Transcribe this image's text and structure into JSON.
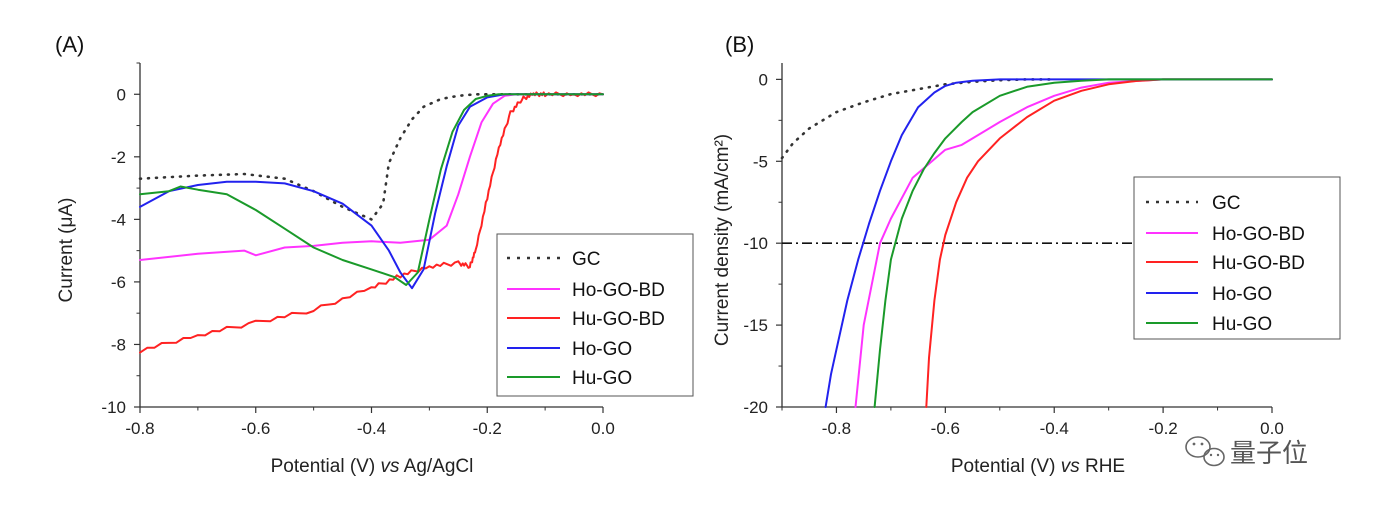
{
  "chart_data": [
    {
      "type": "line",
      "panel_label": "(A)",
      "xlabel": "Potential (V)",
      "xlabel_italic": "vs",
      "xlabel_ref": "Ag/AgCl",
      "ylabel": "Current (μA)",
      "xlim": [
        -0.8,
        0.0
      ],
      "ylim": [
        -10,
        1
      ],
      "xticks": [
        -0.8,
        -0.6,
        -0.4,
        -0.2,
        0.0
      ],
      "xtick_labels": [
        "-0.8",
        "-0.6",
        "-0.4",
        "-0.2",
        "0.0"
      ],
      "yticks": [
        0,
        -2,
        -4,
        -6,
        -8,
        -10
      ],
      "ytick_labels": [
        "0",
        "-2",
        "-4",
        "-6",
        "-8",
        "-10"
      ],
      "legend_position": "bottom-right",
      "series": [
        {
          "name": "GC",
          "color": "#333333",
          "style": "dotted",
          "x": [
            -0.8,
            -0.7,
            -0.62,
            -0.55,
            -0.5,
            -0.45,
            -0.4,
            -0.38,
            -0.37,
            -0.35,
            -0.33,
            -0.31,
            -0.28,
            -0.25,
            -0.22,
            -0.2,
            -0.15,
            -0.1,
            -0.05,
            0.0
          ],
          "y": [
            -2.7,
            -2.6,
            -2.55,
            -2.7,
            -3.1,
            -3.6,
            -4.0,
            -3.5,
            -2.2,
            -1.4,
            -0.8,
            -0.4,
            -0.15,
            -0.05,
            0,
            0,
            0,
            0,
            0,
            0
          ]
        },
        {
          "name": "Ho-GO-BD",
          "color": "#ff33ff",
          "style": "solid",
          "x": [
            -0.8,
            -0.7,
            -0.62,
            -0.6,
            -0.55,
            -0.5,
            -0.45,
            -0.4,
            -0.35,
            -0.3,
            -0.27,
            -0.25,
            -0.23,
            -0.21,
            -0.19,
            -0.17,
            -0.15,
            -0.1,
            0.0
          ],
          "y": [
            -5.3,
            -5.1,
            -5.0,
            -5.15,
            -4.9,
            -4.85,
            -4.75,
            -4.7,
            -4.75,
            -4.65,
            -4.2,
            -3.2,
            -2.0,
            -0.9,
            -0.3,
            -0.05,
            0,
            0,
            0
          ]
        },
        {
          "name": "Hu-GO-BD",
          "color": "#ff2222",
          "style": "solid",
          "x": [
            -0.8,
            -0.7,
            -0.6,
            -0.5,
            -0.4,
            -0.35,
            -0.3,
            -0.25,
            -0.23,
            -0.22,
            -0.2,
            -0.18,
            -0.16,
            -0.14,
            -0.12,
            -0.1,
            -0.05,
            0.0
          ],
          "y": [
            -8.2,
            -7.7,
            -7.3,
            -6.9,
            -6.2,
            -5.8,
            -5.5,
            -5.4,
            -5.5,
            -5.0,
            -3.3,
            -1.7,
            -0.6,
            -0.15,
            0,
            0,
            0,
            0
          ],
          "jitter": 0.06
        },
        {
          "name": "Ho-GO",
          "color": "#2222ee",
          "style": "solid",
          "x": [
            -0.8,
            -0.75,
            -0.7,
            -0.65,
            -0.6,
            -0.55,
            -0.5,
            -0.45,
            -0.4,
            -0.37,
            -0.35,
            -0.33,
            -0.31,
            -0.29,
            -0.27,
            -0.25,
            -0.23,
            -0.2,
            -0.17,
            -0.15,
            -0.1,
            0.0
          ],
          "y": [
            -3.6,
            -3.1,
            -2.9,
            -2.8,
            -2.8,
            -2.85,
            -3.1,
            -3.5,
            -4.2,
            -5.0,
            -5.7,
            -6.2,
            -5.6,
            -3.8,
            -2.3,
            -1.0,
            -0.4,
            -0.1,
            0,
            0,
            0,
            0
          ]
        },
        {
          "name": "Hu-GO",
          "color": "#1a9a2a",
          "style": "solid",
          "x": [
            -0.8,
            -0.75,
            -0.73,
            -0.7,
            -0.65,
            -0.6,
            -0.55,
            -0.5,
            -0.45,
            -0.4,
            -0.36,
            -0.34,
            -0.32,
            -0.3,
            -0.28,
            -0.26,
            -0.24,
            -0.22,
            -0.2,
            -0.18,
            -0.15,
            -0.1,
            0.0
          ],
          "y": [
            -3.2,
            -3.1,
            -2.95,
            -3.05,
            -3.2,
            -3.7,
            -4.3,
            -4.9,
            -5.3,
            -5.6,
            -5.85,
            -6.1,
            -5.7,
            -4.0,
            -2.4,
            -1.2,
            -0.5,
            -0.15,
            -0.05,
            0,
            0,
            0,
            0
          ]
        }
      ]
    },
    {
      "type": "line",
      "panel_label": "(B)",
      "xlabel": "Potential (V)",
      "xlabel_italic": "vs",
      "xlabel_ref": "RHE",
      "ylabel": "Current density (mA/cm²)",
      "xlim": [
        -0.9,
        0.0
      ],
      "ylim": [
        -20,
        1
      ],
      "xticks": [
        -0.8,
        -0.6,
        -0.4,
        -0.2,
        0.0
      ],
      "xtick_labels": [
        "-0.8",
        "-0.6",
        "-0.4",
        "-0.2",
        "0.0"
      ],
      "yticks": [
        0,
        -5,
        -10,
        -15,
        -20
      ],
      "ytick_labels": [
        "0",
        "-5",
        "-10",
        "-15",
        "-20"
      ],
      "reference_line": {
        "y": -10,
        "label": "",
        "style": "dash-dot"
      },
      "legend_position": "right",
      "series": [
        {
          "name": "GC",
          "color": "#333333",
          "style": "dotted",
          "x": [
            -0.9,
            -0.88,
            -0.85,
            -0.8,
            -0.75,
            -0.7,
            -0.65,
            -0.6,
            -0.55,
            -0.5,
            -0.45,
            -0.4
          ],
          "y": [
            -4.8,
            -3.9,
            -3.0,
            -2.0,
            -1.4,
            -0.9,
            -0.6,
            -0.3,
            -0.15,
            -0.05,
            0,
            0
          ]
        },
        {
          "name": "Ho-GO-BD",
          "color": "#ff33ff",
          "style": "solid",
          "x": [
            -0.765,
            -0.75,
            -0.72,
            -0.7,
            -0.66,
            -0.6,
            -0.57,
            -0.55,
            -0.5,
            -0.45,
            -0.4,
            -0.35,
            -0.3,
            -0.25,
            -0.2,
            -0.15,
            0.0
          ],
          "y": [
            -20,
            -15.0,
            -10.0,
            -8.5,
            -6.0,
            -4.3,
            -4.0,
            -3.6,
            -2.6,
            -1.7,
            -1.0,
            -0.5,
            -0.2,
            -0.1,
            0,
            0,
            0
          ]
        },
        {
          "name": "Hu-GO-BD",
          "color": "#ff2222",
          "style": "solid",
          "x": [
            -0.635,
            -0.63,
            -0.62,
            -0.61,
            -0.6,
            -0.58,
            -0.56,
            -0.54,
            -0.5,
            -0.45,
            -0.4,
            -0.35,
            -0.3,
            -0.25,
            -0.2,
            -0.15,
            0.0
          ],
          "y": [
            -20,
            -17.0,
            -13.5,
            -11.0,
            -9.5,
            -7.5,
            -6.0,
            -5.0,
            -3.6,
            -2.3,
            -1.3,
            -0.7,
            -0.3,
            -0.1,
            0,
            0,
            0
          ]
        },
        {
          "name": "Ho-GO",
          "color": "#2222ee",
          "style": "solid",
          "x": [
            -0.82,
            -0.81,
            -0.8,
            -0.78,
            -0.76,
            -0.74,
            -0.72,
            -0.7,
            -0.68,
            -0.65,
            -0.62,
            -0.6,
            -0.58,
            -0.55,
            -0.5,
            -0.45,
            -0.4,
            -0.3,
            -0.2,
            0.0
          ],
          "y": [
            -20,
            -18.0,
            -16.5,
            -13.5,
            -11.0,
            -8.8,
            -6.8,
            -5.0,
            -3.4,
            -1.7,
            -0.8,
            -0.4,
            -0.2,
            -0.08,
            0,
            0,
            0,
            0,
            0,
            0
          ]
        },
        {
          "name": "Hu-GO",
          "color": "#1a9a2a",
          "style": "solid",
          "x": [
            -0.73,
            -0.72,
            -0.71,
            -0.7,
            -0.68,
            -0.66,
            -0.64,
            -0.62,
            -0.6,
            -0.57,
            -0.55,
            -0.5,
            -0.45,
            -0.4,
            -0.35,
            -0.3,
            -0.25,
            -0.2,
            0.0
          ],
          "y": [
            -20,
            -16.5,
            -13.5,
            -11.0,
            -8.5,
            -6.8,
            -5.5,
            -4.5,
            -3.6,
            -2.6,
            -2.0,
            -1.0,
            -0.45,
            -0.2,
            -0.08,
            0,
            0,
            0,
            0
          ]
        }
      ]
    }
  ],
  "watermark": {
    "text": "量子位",
    "icon": "wechat-icon"
  }
}
